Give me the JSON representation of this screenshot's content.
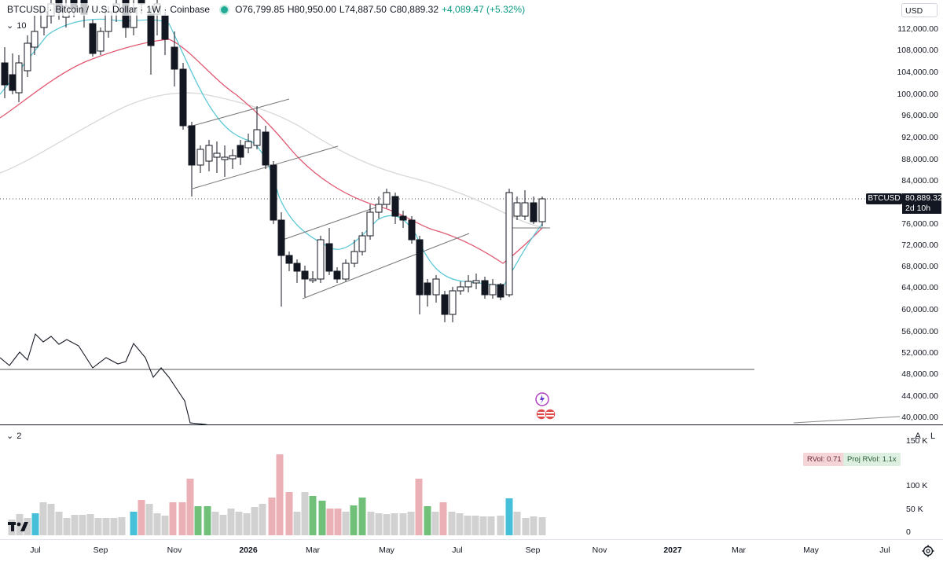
{
  "header": {
    "symbol": "BTCUSD",
    "description": "Bitcoin / U.S. Dollar",
    "interval": "1W",
    "exchange": "Coinbase",
    "separator": "·",
    "open": "O76,799.85",
    "high": "H80,950.00",
    "low": "L74,887.50",
    "close": "C80,889.32",
    "change": "+4,089.47 (+5.32%)",
    "indicator_collapse": "10"
  },
  "currency": "USD",
  "price_axis": {
    "labels": [
      "112,000.00",
      "108,000.00",
      "104,000.00",
      "100,000.00",
      "96,000.00",
      "92,000.00",
      "88,000.00",
      "84,000.00",
      "76,000.00",
      "72,000.00",
      "68,000.00",
      "64,000.00",
      "60,000.00",
      "56,000.00",
      "52,000.00",
      "48,000.00",
      "44,000.00",
      "40,000.00"
    ],
    "current_symbol": "BTCUSD",
    "current_price": "80,889.32",
    "countdown": "2d 10h",
    "auto_button": "A",
    "log_button": "L"
  },
  "volume_pane": {
    "collapse_label": "2",
    "rvol": "RVol: 0.71",
    "proj_rvol": "Proj RVol: 1.1x",
    "axis_labels": [
      "150 K",
      "100 K",
      "50 K",
      "0"
    ]
  },
  "time_axis": {
    "labels": [
      "Jul",
      "Sep",
      "Nov",
      "2026",
      "Mar",
      "May",
      "Jul",
      "Sep",
      "Nov",
      "2027",
      "Mar",
      "May",
      "Jul"
    ]
  },
  "colors": {
    "up": "#000000",
    "down": "#000000",
    "ema_fast": "#5ec9d6",
    "ema_mid": "#e05a73",
    "sma_slow": "#d8d8d8",
    "vol_neutral": "#d1d1d1",
    "vol_red": "#eab0b6",
    "vol_green": "#70c07a",
    "vol_cyan": "#45c0d8"
  },
  "icons": {
    "logo": "tradingview-logo-icon",
    "settings": "gear-icon"
  }
}
